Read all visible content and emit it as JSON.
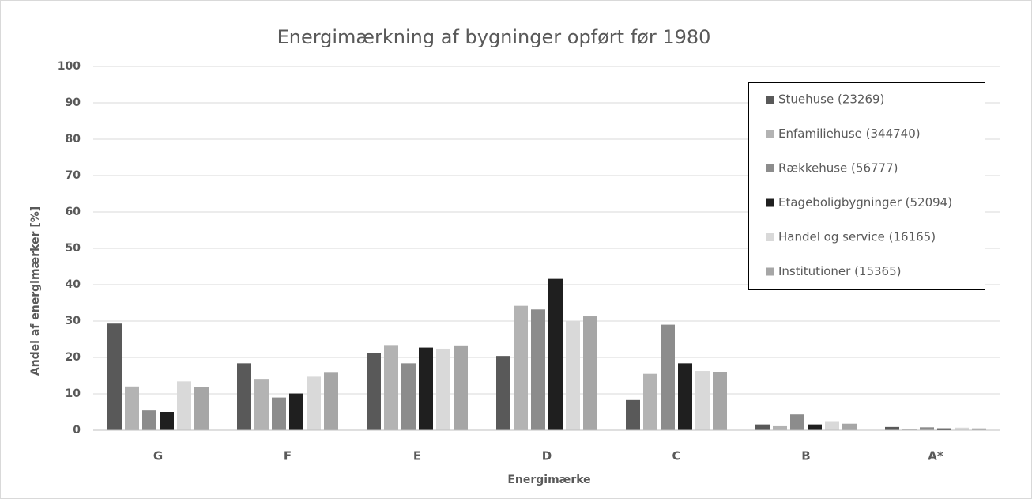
{
  "chart_data": {
    "type": "bar",
    "title": "Energimærkning af bygninger opført før 1980",
    "x_label": "Energimærke",
    "y_label": "Andel af energimærker [%]",
    "categories": [
      "G",
      "F",
      "E",
      "D",
      "C",
      "B",
      "A*"
    ],
    "series": [
      {
        "name": "Stuehuse (23269)",
        "color": "#595959",
        "values": [
          29.3,
          18.4,
          21.1,
          20.4,
          8.3,
          1.6,
          0.9
        ]
      },
      {
        "name": "Enfamiliehuse (344740)",
        "color": "#b3b3b3",
        "values": [
          12,
          14.1,
          23.4,
          34.2,
          15.5,
          1.1,
          0.4
        ]
      },
      {
        "name": "Rækkehuse (56777)",
        "color": "#8c8c8c",
        "values": [
          5.4,
          9,
          18.4,
          33.2,
          29,
          4.3,
          0.8
        ]
      },
      {
        "name": "Etageboligbygninger (52094)",
        "color": "#1f1f1f",
        "values": [
          5,
          10.1,
          22.7,
          41.6,
          18.4,
          1.6,
          0.5
        ]
      },
      {
        "name": "Handel og service (16165)",
        "color": "#d9d9d9",
        "values": [
          13.4,
          14.7,
          22.4,
          30.1,
          16.3,
          2.5,
          0.7
        ]
      },
      {
        "name": "Institutioner (15365)",
        "color": "#a6a6a6",
        "values": [
          11.8,
          15.8,
          23.3,
          31.3,
          15.9,
          1.8,
          0.5
        ]
      }
    ],
    "ylim": [
      0,
      100
    ],
    "yticks": [
      0,
      10,
      20,
      30,
      40,
      50,
      60,
      70,
      80,
      90,
      100
    ],
    "grid": true,
    "legend": "top-right"
  }
}
